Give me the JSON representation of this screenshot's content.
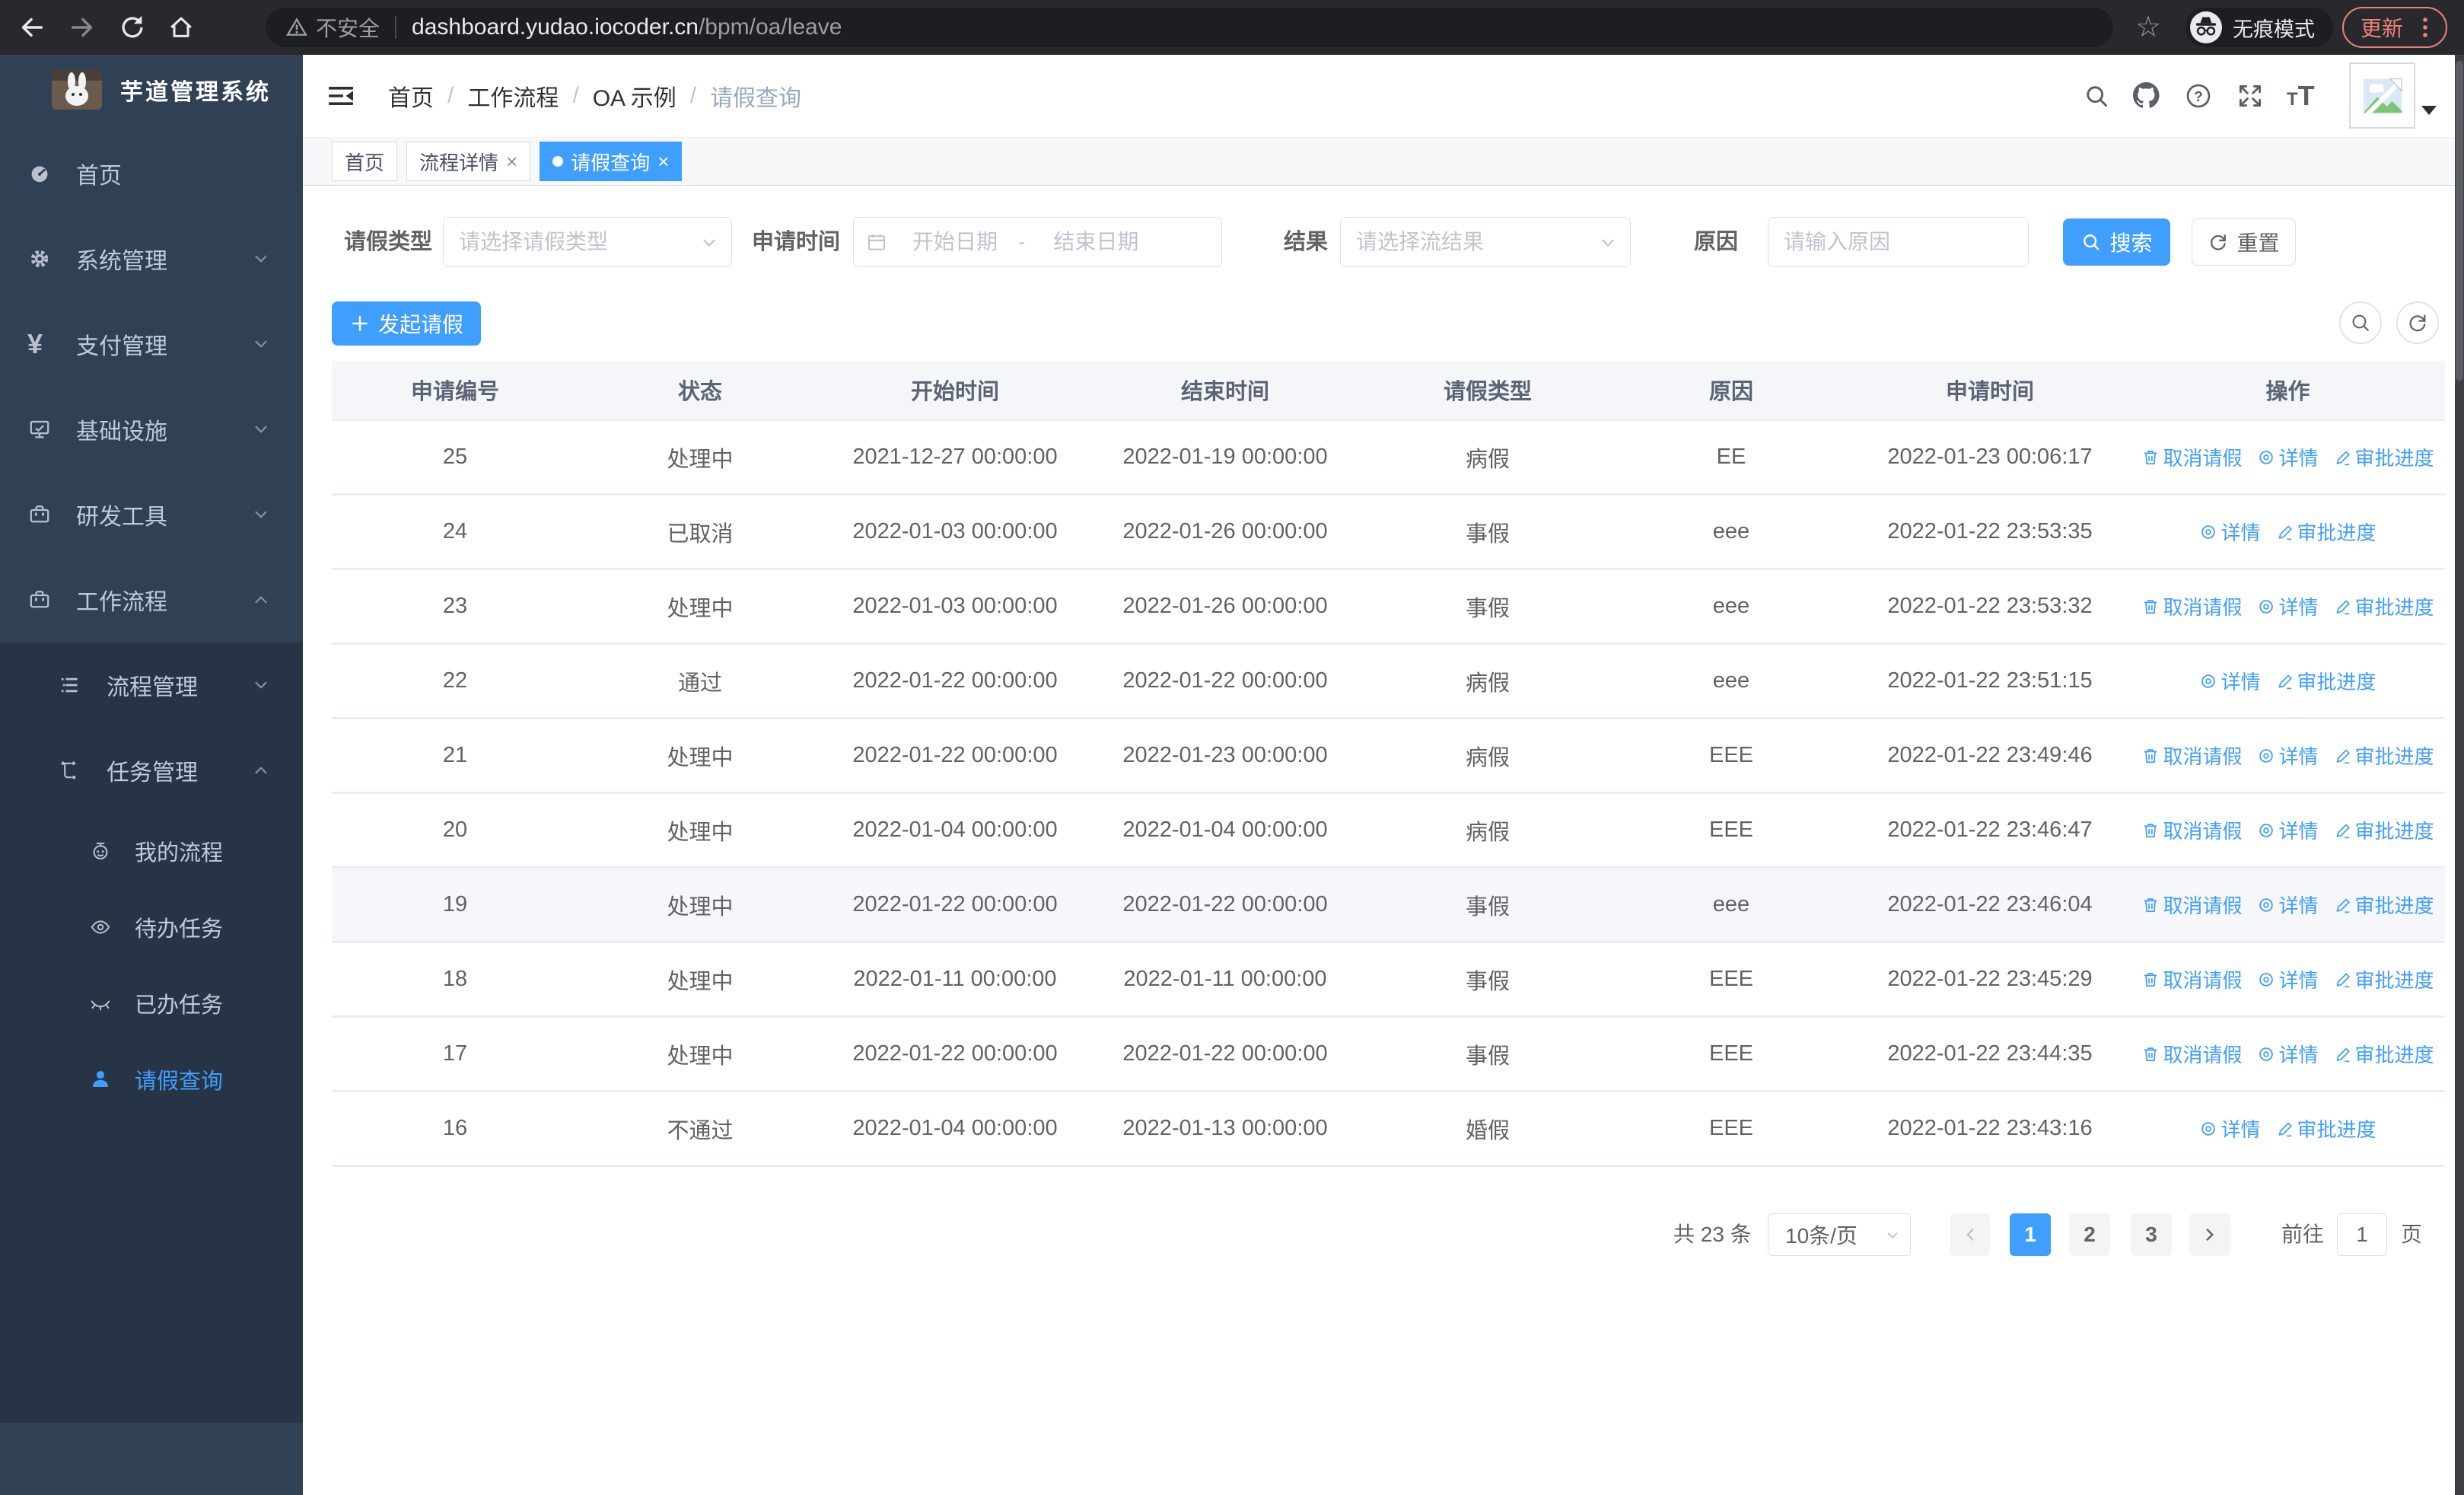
{
  "browser": {
    "security_label": "不安全",
    "url_host": "dashboard.yudao.iocoder.cn",
    "url_path": "/bpm/oa/leave",
    "incognito_label": "无痕模式",
    "update_label": "更新"
  },
  "sidebar": {
    "title": "芋道管理系统",
    "items": [
      {
        "label": "首页",
        "icon": "dashboard-icon"
      },
      {
        "label": "系统管理",
        "icon": "gear-icon"
      },
      {
        "label": "支付管理",
        "icon": "yen-icon"
      },
      {
        "label": "基础设施",
        "icon": "monitor-icon"
      },
      {
        "label": "研发工具",
        "icon": "toolbox-icon"
      },
      {
        "label": "工作流程",
        "icon": "briefcase-icon"
      }
    ],
    "submenu": [
      {
        "label": "流程管理",
        "icon": "list-icon"
      },
      {
        "label": "任务管理",
        "icon": "flow-icon"
      }
    ],
    "sub_items": [
      {
        "label": "我的流程",
        "icon": "robot-icon"
      },
      {
        "label": "待办任务",
        "icon": "eye-icon"
      },
      {
        "label": "已办任务",
        "icon": "eye-closed-icon"
      },
      {
        "label": "请假查询",
        "icon": "user-icon",
        "active": true
      }
    ]
  },
  "header": {
    "breadcrumb": [
      "首页",
      "工作流程",
      "OA 示例",
      "请假查询"
    ],
    "icon_names": [
      "search-icon",
      "github-icon",
      "help-icon",
      "fullscreen-icon",
      "font-size-icon",
      "avatar",
      "caret-down-icon"
    ]
  },
  "tabs": [
    {
      "label": "首页"
    },
    {
      "label": "流程详情",
      "close": "×"
    },
    {
      "label": "请假查询",
      "close": "×",
      "active": true
    }
  ],
  "filters": {
    "type_label": "请假类型",
    "type_placeholder": "请选择请假类型",
    "time_label": "申请时间",
    "start_placeholder": "开始日期",
    "range_separator": "-",
    "end_placeholder": "结束日期",
    "result_label": "结果",
    "result_placeholder": "请选择流结果",
    "reason_label": "原因",
    "reason_placeholder": "请输入原因",
    "search_label": "搜索",
    "reset_label": "重置"
  },
  "toolbar": {
    "create_label": "发起请假"
  },
  "table": {
    "headers": [
      "申请编号",
      "状态",
      "开始时间",
      "结束时间",
      "请假类型",
      "原因",
      "申请时间",
      "操作"
    ],
    "action_defs": {
      "cancel": {
        "label": "取消请假",
        "icon": "trash-icon"
      },
      "detail": {
        "label": "详情",
        "icon": "view-icon"
      },
      "progress": {
        "label": "审批进度",
        "icon": "edit-icon"
      }
    },
    "rows": [
      {
        "id": "25",
        "status": "处理中",
        "start": "2021-12-27 00:00:00",
        "end": "2022-01-19 00:00:00",
        "type": "病假",
        "reason": "EE",
        "apply": "2022-01-23 00:06:17",
        "actions": [
          "cancel",
          "detail",
          "progress"
        ]
      },
      {
        "id": "24",
        "status": "已取消",
        "start": "2022-01-03 00:00:00",
        "end": "2022-01-26 00:00:00",
        "type": "事假",
        "reason": "eee",
        "apply": "2022-01-22 23:53:35",
        "actions": [
          "detail",
          "progress"
        ]
      },
      {
        "id": "23",
        "status": "处理中",
        "start": "2022-01-03 00:00:00",
        "end": "2022-01-26 00:00:00",
        "type": "事假",
        "reason": "eee",
        "apply": "2022-01-22 23:53:32",
        "actions": [
          "cancel",
          "detail",
          "progress"
        ]
      },
      {
        "id": "22",
        "status": "通过",
        "start": "2022-01-22 00:00:00",
        "end": "2022-01-22 00:00:00",
        "type": "病假",
        "reason": "eee",
        "apply": "2022-01-22 23:51:15",
        "actions": [
          "detail",
          "progress"
        ]
      },
      {
        "id": "21",
        "status": "处理中",
        "start": "2022-01-22 00:00:00",
        "end": "2022-01-23 00:00:00",
        "type": "病假",
        "reason": "EEE",
        "apply": "2022-01-22 23:49:46",
        "actions": [
          "cancel",
          "detail",
          "progress"
        ]
      },
      {
        "id": "20",
        "status": "处理中",
        "start": "2022-01-04 00:00:00",
        "end": "2022-01-04 00:00:00",
        "type": "病假",
        "reason": "EEE",
        "apply": "2022-01-22 23:46:47",
        "actions": [
          "cancel",
          "detail",
          "progress"
        ]
      },
      {
        "id": "19",
        "status": "处理中",
        "start": "2022-01-22 00:00:00",
        "end": "2022-01-22 00:00:00",
        "type": "事假",
        "reason": "eee",
        "apply": "2022-01-22 23:46:04",
        "actions": [
          "cancel",
          "detail",
          "progress"
        ],
        "hover": true
      },
      {
        "id": "18",
        "status": "处理中",
        "start": "2022-01-11 00:00:00",
        "end": "2022-01-11 00:00:00",
        "type": "事假",
        "reason": "EEE",
        "apply": "2022-01-22 23:45:29",
        "actions": [
          "cancel",
          "detail",
          "progress"
        ]
      },
      {
        "id": "17",
        "status": "处理中",
        "start": "2022-01-22 00:00:00",
        "end": "2022-01-22 00:00:00",
        "type": "事假",
        "reason": "EEE",
        "apply": "2022-01-22 23:44:35",
        "actions": [
          "cancel",
          "detail",
          "progress"
        ]
      },
      {
        "id": "16",
        "status": "不通过",
        "start": "2022-01-04 00:00:00",
        "end": "2022-01-13 00:00:00",
        "type": "婚假",
        "reason": "EEE",
        "apply": "2022-01-22 23:43:16",
        "actions": [
          "detail",
          "progress"
        ]
      }
    ]
  },
  "pagination": {
    "total_label": "共 23 条",
    "page_size": "10条/页",
    "pages": [
      "1",
      "2",
      "3"
    ],
    "active_page": "1",
    "goto_label": "前往",
    "goto_value": "1",
    "page_unit": "页"
  },
  "colors": {
    "accent": "#409eff",
    "sidebar_bg": "#304156",
    "submenu_bg": "#263445",
    "update_accent": "#ee8277"
  }
}
